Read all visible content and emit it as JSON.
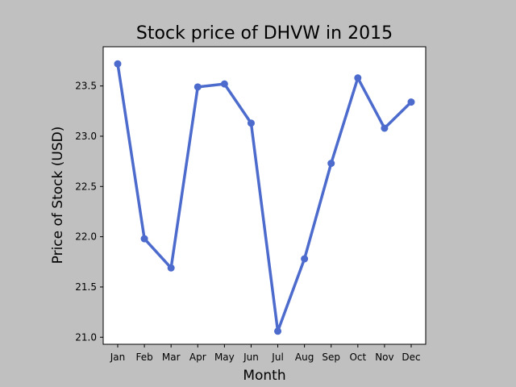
{
  "chart_data": {
    "type": "line",
    "title": "Stock price of DHVW in 2015",
    "xlabel": "Month",
    "ylabel": "Price of Stock (USD)",
    "categories": [
      "Jan",
      "Feb",
      "Mar",
      "Apr",
      "May",
      "Jun",
      "Jul",
      "Aug",
      "Sep",
      "Oct",
      "Nov",
      "Dec"
    ],
    "series": [
      {
        "values": [
          23.72,
          21.98,
          21.69,
          23.49,
          23.52,
          23.13,
          21.06,
          21.78,
          22.73,
          23.58,
          23.08,
          23.34
        ],
        "color": "#4c6bcd"
      }
    ],
    "ylim": [
      20.93,
      23.89
    ],
    "yticks": [
      21.0,
      21.5,
      22.0,
      22.5,
      23.0,
      23.5
    ],
    "ytick_labels": [
      "21.0",
      "21.5",
      "22.0",
      "22.5",
      "23.0",
      "23.5"
    ],
    "grid": false,
    "legend": "none",
    "plot_background": "#ffffff",
    "figure_background": "#c0c0c0"
  }
}
